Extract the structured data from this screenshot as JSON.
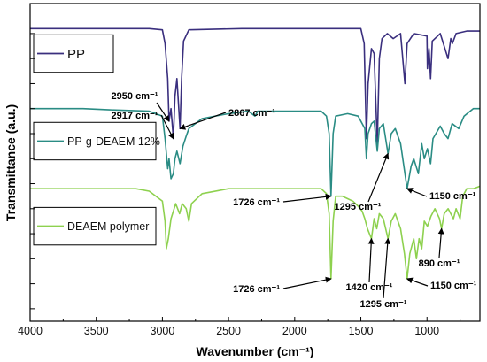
{
  "chart_data": {
    "type": "line",
    "xlabel": "Wavenumber (cm⁻¹)",
    "ylabel": "Transmittance (a.u.)",
    "xlim": [
      4000,
      600
    ],
    "x_ticks": [
      "4000",
      "3500",
      "3000",
      "2500",
      "2000",
      "1500",
      "1000"
    ],
    "x_tick_values": [
      4000,
      3500,
      3000,
      2500,
      2000,
      1500,
      1000
    ],
    "y_tick_labels": "none",
    "legend_placement": "left, one box per spectrum",
    "series": [
      {
        "name": "PP",
        "color": "#3a2f7e",
        "baseline": 0.82,
        "points": [
          [
            4000,
            0.82
          ],
          [
            3100,
            0.82
          ],
          [
            3000,
            0.815
          ],
          [
            2980,
            0.76
          ],
          [
            2960,
            0.62
          ],
          [
            2950,
            0.45
          ],
          [
            2935,
            0.5
          ],
          [
            2917,
            0.38
          ],
          [
            2905,
            0.55
          ],
          [
            2890,
            0.62
          ],
          [
            2867,
            0.42
          ],
          [
            2855,
            0.62
          ],
          [
            2840,
            0.77
          ],
          [
            2800,
            0.815
          ],
          [
            2400,
            0.82
          ],
          [
            1500,
            0.82
          ],
          [
            1475,
            0.76
          ],
          [
            1458,
            0.38
          ],
          [
            1445,
            0.6
          ],
          [
            1420,
            0.74
          ],
          [
            1400,
            0.72
          ],
          [
            1376,
            0.36
          ],
          [
            1360,
            0.7
          ],
          [
            1340,
            0.78
          ],
          [
            1300,
            0.8
          ],
          [
            1255,
            0.78
          ],
          [
            1200,
            0.8
          ],
          [
            1167,
            0.6
          ],
          [
            1150,
            0.76
          ],
          [
            1100,
            0.8
          ],
          [
            1000,
            0.79
          ],
          [
            997,
            0.66
          ],
          [
            985,
            0.74
          ],
          [
            973,
            0.62
          ],
          [
            960,
            0.77
          ],
          [
            900,
            0.8
          ],
          [
            841,
            0.7
          ],
          [
            820,
            0.78
          ],
          [
            808,
            0.76
          ],
          [
            780,
            0.8
          ],
          [
            700,
            0.81
          ],
          [
            600,
            0.81
          ]
        ]
      },
      {
        "name": "PP-g-DEAEM 12%",
        "color": "#2a8c84",
        "baseline": 0.5,
        "points": [
          [
            4000,
            0.5
          ],
          [
            3600,
            0.5
          ],
          [
            3400,
            0.495
          ],
          [
            3100,
            0.49
          ],
          [
            3000,
            0.47
          ],
          [
            2980,
            0.38
          ],
          [
            2960,
            0.26
          ],
          [
            2950,
            0.3
          ],
          [
            2935,
            0.22
          ],
          [
            2917,
            0.24
          ],
          [
            2905,
            0.3
          ],
          [
            2890,
            0.33
          ],
          [
            2867,
            0.28
          ],
          [
            2845,
            0.35
          ],
          [
            2820,
            0.39
          ],
          [
            2800,
            0.42
          ],
          [
            2700,
            0.46
          ],
          [
            2500,
            0.48
          ],
          [
            2350,
            0.49
          ],
          [
            2300,
            0.47
          ],
          [
            2280,
            0.49
          ],
          [
            2000,
            0.49
          ],
          [
            1800,
            0.49
          ],
          [
            1760,
            0.47
          ],
          [
            1740,
            0.4
          ],
          [
            1726,
            0.15
          ],
          [
            1710,
            0.4
          ],
          [
            1690,
            0.47
          ],
          [
            1600,
            0.48
          ],
          [
            1520,
            0.47
          ],
          [
            1470,
            0.42
          ],
          [
            1458,
            0.3
          ],
          [
            1445,
            0.4
          ],
          [
            1420,
            0.44
          ],
          [
            1400,
            0.45
          ],
          [
            1376,
            0.33
          ],
          [
            1360,
            0.42
          ],
          [
            1330,
            0.44
          ],
          [
            1295,
            0.32
          ],
          [
            1270,
            0.4
          ],
          [
            1240,
            0.42
          ],
          [
            1200,
            0.36
          ],
          [
            1150,
            0.18
          ],
          [
            1120,
            0.27
          ],
          [
            1100,
            0.3
          ],
          [
            1065,
            0.24
          ],
          [
            1040,
            0.36
          ],
          [
            1020,
            0.3
          ],
          [
            997,
            0.34
          ],
          [
            973,
            0.28
          ],
          [
            955,
            0.38
          ],
          [
            900,
            0.43
          ],
          [
            870,
            0.4
          ],
          [
            841,
            0.38
          ],
          [
            810,
            0.44
          ],
          [
            760,
            0.42
          ],
          [
            720,
            0.47
          ],
          [
            650,
            0.5
          ],
          [
            600,
            0.5
          ]
        ]
      },
      {
        "name": "DEAEM polymer",
        "color": "#8ed14f",
        "baseline": 0.18,
        "points": [
          [
            4000,
            0.18
          ],
          [
            3600,
            0.18
          ],
          [
            3200,
            0.18
          ],
          [
            3100,
            0.17
          ],
          [
            3000,
            0.13
          ],
          [
            2980,
            0.05
          ],
          [
            2970,
            -0.06
          ],
          [
            2955,
            -0.02
          ],
          [
            2935,
            0.06
          ],
          [
            2900,
            0.12
          ],
          [
            2870,
            0.08
          ],
          [
            2850,
            0.12
          ],
          [
            2820,
            0.1
          ],
          [
            2800,
            0.05
          ],
          [
            2780,
            0.12
          ],
          [
            2700,
            0.16
          ],
          [
            2500,
            0.18
          ],
          [
            2000,
            0.18
          ],
          [
            1800,
            0.18
          ],
          [
            1760,
            0.16
          ],
          [
            1740,
            0.08
          ],
          [
            1726,
            -0.18
          ],
          [
            1710,
            0.05
          ],
          [
            1690,
            0.15
          ],
          [
            1640,
            0.15
          ],
          [
            1600,
            0.14
          ],
          [
            1560,
            0.13
          ],
          [
            1520,
            0.11
          ],
          [
            1490,
            0.09
          ],
          [
            1470,
            0.06
          ],
          [
            1450,
            0.02
          ],
          [
            1420,
            -0.02
          ],
          [
            1400,
            0.06
          ],
          [
            1380,
            0.02
          ],
          [
            1360,
            0.08
          ],
          [
            1330,
            0.06
          ],
          [
            1295,
            -0.02
          ],
          [
            1270,
            0.05
          ],
          [
            1240,
            0.08
          ],
          [
            1200,
            0.02
          ],
          [
            1170,
            -0.08
          ],
          [
            1150,
            -0.18
          ],
          [
            1130,
            -0.08
          ],
          [
            1100,
            -0.02
          ],
          [
            1080,
            -0.1
          ],
          [
            1060,
            -0.02
          ],
          [
            1040,
            -0.06
          ],
          [
            1020,
            0.05
          ],
          [
            997,
            0.03
          ],
          [
            970,
            0.07
          ],
          [
            940,
            0.1
          ],
          [
            905,
            0.06
          ],
          [
            890,
            0.02
          ],
          [
            870,
            0.08
          ],
          [
            840,
            0.1
          ],
          [
            800,
            0.06
          ],
          [
            780,
            0.1
          ],
          [
            750,
            0.06
          ],
          [
            730,
            0.15
          ],
          [
            700,
            0.18
          ],
          [
            650,
            0.18
          ],
          [
            600,
            0.19
          ]
        ]
      }
    ],
    "annotations": [
      {
        "text": "2950 cm⁻¹",
        "target": [
          2950,
          0.45
        ]
      },
      {
        "text": "2917 cm⁻¹",
        "target": [
          2917,
          0.38
        ]
      },
      {
        "text": "2867 cm⁻¹",
        "target": [
          2867,
          0.42
        ]
      },
      {
        "text": "1726 cm⁻¹",
        "target": [
          1726,
          0.15
        ]
      },
      {
        "text": "1295 cm⁻¹",
        "target": [
          1295,
          0.32
        ]
      },
      {
        "text": "1150 cm⁻¹",
        "target": [
          1150,
          0.18
        ]
      },
      {
        "text": "1726 cm⁻¹",
        "target": [
          1726,
          -0.18
        ]
      },
      {
        "text": "1420 cm⁻¹",
        "target": [
          1420,
          -0.02
        ]
      },
      {
        "text": "1295 cm⁻¹",
        "target": [
          1295,
          -0.02
        ]
      },
      {
        "text": "1150 cm⁻¹",
        "target": [
          1150,
          -0.18
        ]
      },
      {
        "text": "890 cm⁻¹",
        "target": [
          890,
          0.02
        ]
      }
    ]
  }
}
